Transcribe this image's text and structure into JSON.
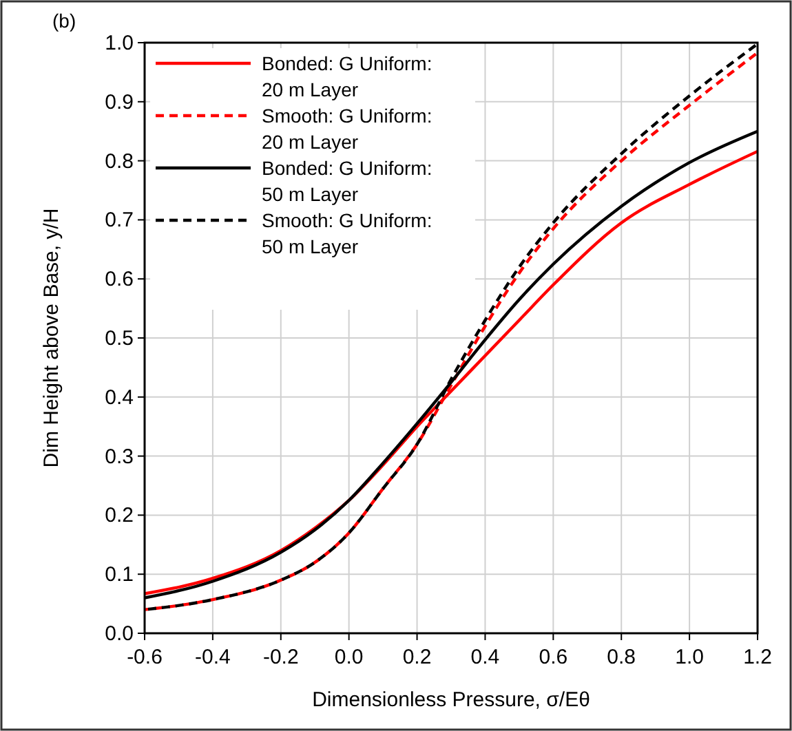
{
  "chart_data": {
    "type": "line",
    "xlabel": "Dimensionless Pressure, σ/Eθ",
    "ylabel": "Dim Height above Base, y/H",
    "annotations": [
      "(b)"
    ],
    "xlim": [
      -0.6,
      1.2
    ],
    "xticks": [
      {
        "value": -0.6,
        "label": "-0.6"
      },
      {
        "value": -0.4,
        "label": "-0.4"
      },
      {
        "value": -0.2,
        "label": "-0.2"
      },
      {
        "value": 0,
        "label": "0.0"
      },
      {
        "value": 0.2,
        "label": "0.2"
      },
      {
        "value": 0.4,
        "label": "0.4"
      },
      {
        "value": 0.6,
        "label": "0.6"
      },
      {
        "value": 0.8,
        "label": "0.8"
      },
      {
        "value": 1,
        "label": "1.0"
      },
      {
        "value": 1.2,
        "label": "1.2"
      }
    ],
    "ylim": [
      0,
      1
    ],
    "yticks": [
      {
        "value": 0,
        "label": "0.0"
      },
      {
        "value": 0.1,
        "label": "0.1"
      },
      {
        "value": 0.2,
        "label": "0.2"
      },
      {
        "value": 0.3,
        "label": "0.3"
      },
      {
        "value": 0.4,
        "label": "0.4"
      },
      {
        "value": 0.5,
        "label": "0.5"
      },
      {
        "value": 0.6,
        "label": "0.6"
      },
      {
        "value": 0.7,
        "label": "0.7"
      },
      {
        "value": 0.8,
        "label": "0.8"
      },
      {
        "value": 0.9,
        "label": "0.9"
      },
      {
        "value": 1,
        "label": "1.0"
      }
    ],
    "grid": true,
    "legend": "top left",
    "x": [
      -0.6,
      -0.4,
      -0.2,
      -0.1,
      0,
      0.1,
      0.2,
      0.3,
      0.4,
      0.5,
      0.6,
      0.8,
      1,
      1.2
    ],
    "series": [
      {
        "name": "Bonded: G Uniform: 20 m Layer",
        "color": "#ff0000",
        "line_style": "solid",
        "values": [
          0.067,
          0.093,
          0.14,
          0.178,
          0.225,
          0.285,
          0.35,
          0.41,
          0.47,
          0.53,
          0.59,
          0.695,
          0.76,
          0.816
        ]
      },
      {
        "name": "Smooth: G Uniform: 20 m Layer",
        "color": "#ff0000",
        "line_style": "dashed",
        "values": [
          0.04,
          0.057,
          0.09,
          0.12,
          0.17,
          0.245,
          0.32,
          0.42,
          0.52,
          0.61,
          0.685,
          0.8,
          0.894,
          0.983
        ]
      },
      {
        "name": "Bonded: G Uniform: 50 m Layer",
        "color": "#000000",
        "line_style": "solid",
        "values": [
          0.06,
          0.088,
          0.137,
          0.175,
          0.225,
          0.288,
          0.355,
          0.425,
          0.497,
          0.565,
          0.625,
          0.723,
          0.797,
          0.85
        ]
      },
      {
        "name": "Smooth: G Uniform: 50 m Layer",
        "color": "#000000",
        "line_style": "dashed",
        "values": [
          0.04,
          0.057,
          0.09,
          0.12,
          0.17,
          0.245,
          0.32,
          0.43,
          0.53,
          0.62,
          0.695,
          0.812,
          0.91,
          0.998
        ]
      }
    ]
  }
}
